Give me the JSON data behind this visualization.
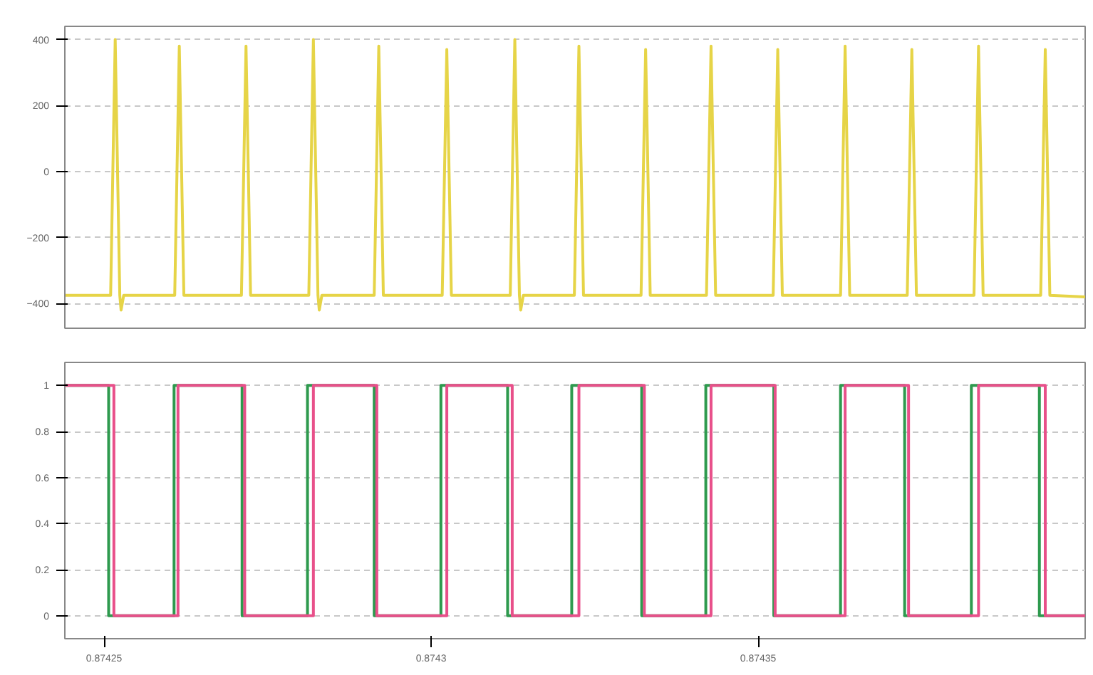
{
  "chart_data": [
    {
      "type": "line",
      "xlim": [
        0.874244,
        0.8744
      ],
      "ylim": [
        -475,
        440
      ],
      "yticks": [
        -400,
        -200,
        0,
        200,
        400
      ],
      "tick_labels": "y",
      "grid": "y",
      "series": [
        {
          "color": "#e6d447",
          "x": [
            0.874244,
            0.874251,
            0.8742517,
            0.8742524,
            0.8742526,
            0.874253,
            0.8742608,
            0.8742615,
            0.8742622,
            0.874271,
            0.8742717,
            0.8742724,
            0.8742813,
            0.874282,
            0.8742827,
            0.8742829,
            0.8742833,
            0.8742913,
            0.874292,
            0.8742927,
            0.8743017,
            0.8743024,
            0.8743031,
            0.8743121,
            0.8743128,
            0.8743135,
            0.8743137,
            0.8743141,
            0.8743219,
            0.8743226,
            0.8743233,
            0.8743321,
            0.8743328,
            0.8743335,
            0.8743421,
            0.8743428,
            0.8743435,
            0.8743523,
            0.874353,
            0.8743537,
            0.8743626,
            0.8743633,
            0.874364,
            0.8743728,
            0.8743735,
            0.8743742,
            0.874383,
            0.8743837,
            0.8743844,
            0.8743932,
            0.8743939,
            0.8743946,
            0.8744
          ],
          "values": [
            -375,
            -375,
            400,
            -375,
            -420,
            -375,
            -375,
            380,
            -375,
            -375,
            380,
            -375,
            -375,
            400,
            -375,
            -420,
            -375,
            -375,
            380,
            -375,
            -375,
            370,
            -375,
            -375,
            400,
            -375,
            -420,
            -375,
            -375,
            380,
            -375,
            -375,
            370,
            -375,
            -375,
            380,
            -375,
            -375,
            370,
            -375,
            -375,
            380,
            -375,
            -375,
            370,
            -375,
            -375,
            380,
            -375,
            -375,
            370,
            -375,
            -380
          ]
        }
      ]
    },
    {
      "type": "step",
      "xlim": [
        0.874244,
        0.8744
      ],
      "ylim": [
        -0.1,
        1.1
      ],
      "yticks": [
        0,
        0.2,
        0.4,
        0.6,
        0.8,
        1
      ],
      "xticks": [
        {
          "value": 0.87425,
          "label": "0.87425"
        },
        {
          "value": 0.8743,
          "label": "0.8743"
        },
        {
          "value": 0.87435,
          "label": "0.87435"
        }
      ],
      "grid": "y",
      "series": [
        {
          "color": "#2e9a4e",
          "x": [
            0.874244,
            0.8742507,
            0.8742607,
            0.8742711,
            0.8742811,
            0.8742913,
            0.8743015,
            0.8743117,
            0.8743215,
            0.8743322,
            0.874342,
            0.8743524,
            0.8743626,
            0.8743724,
            0.8743826,
            0.874393,
            0.8744
          ],
          "values": [
            1,
            0,
            1,
            0,
            1,
            0,
            1,
            0,
            1,
            0,
            1,
            0,
            1,
            0,
            1,
            0,
            0
          ]
        },
        {
          "color": "#e8508a",
          "x": [
            0.874244,
            0.8742515,
            0.8742613,
            0.8742715,
            0.874282,
            0.8742917,
            0.8743024,
            0.8743124,
            0.8743226,
            0.8743326,
            0.8743428,
            0.8743526,
            0.8743633,
            0.874373,
            0.8743837,
            0.8743939,
            0.8744
          ],
          "values": [
            1,
            0,
            1,
            0,
            1,
            0,
            1,
            0,
            1,
            0,
            1,
            0,
            1,
            0,
            1,
            0,
            0
          ]
        }
      ]
    }
  ]
}
